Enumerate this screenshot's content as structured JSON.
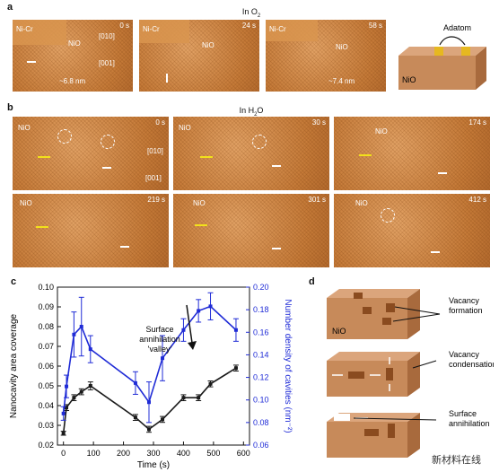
{
  "panel_a": {
    "label": "a",
    "condition": "In O",
    "condition_sub": "2",
    "frames": [
      {
        "time": "0 s",
        "tags": [
          "Ni-Cr",
          "NiO"
        ],
        "dirs": [
          "[010]",
          "[001]"
        ],
        "measure": "~6.8 nm"
      },
      {
        "time": "24 s",
        "tags": [
          "Ni-Cr",
          "NiO"
        ]
      },
      {
        "time": "58 s",
        "tags": [
          "Ni-Cr",
          "NiO"
        ],
        "measure": "~7.4 nm"
      }
    ],
    "schematic": {
      "adatom": "Adatom",
      "nio": "NiO"
    }
  },
  "panel_b": {
    "label": "b",
    "condition": "In H",
    "condition_sub": "2",
    "condition_tail": "O",
    "frames": [
      {
        "time": "0 s",
        "tag": "NiO",
        "dirs": [
          "[010]",
          "[001]"
        ]
      },
      {
        "time": "30 s",
        "tag": "NiO"
      },
      {
        "time": "174 s",
        "tag": "NiO"
      },
      {
        "time": "219 s",
        "tag": "NiO"
      },
      {
        "time": "301 s",
        "tag": "NiO"
      },
      {
        "time": "412 s",
        "tag": "NiO"
      }
    ]
  },
  "panel_c": {
    "label": "c"
  },
  "panel_d": {
    "label": "d",
    "nio": "NiO",
    "labels": [
      "Vacancy\nformation",
      "Vacancy\ncondensation",
      "Surface\nannihilation"
    ]
  },
  "watermark": "新材料在线",
  "colors": {
    "black_series": "#1a1a1a",
    "blue_series": "#1f2bd6",
    "block": "#c78a5a",
    "block_top": "#dba57c",
    "block_side": "#a86a3d"
  },
  "chart_data": {
    "type": "line",
    "xlabel": "Time (s)",
    "ylabel_left": "Nanocavity area coverage",
    "ylabel_right": "Number density of cavities (nm⁻²)",
    "xlim": [
      -20,
      620
    ],
    "x_ticks": [
      0,
      100,
      200,
      300,
      400,
      500,
      600
    ],
    "ylim_left": [
      0.02,
      0.1
    ],
    "y_ticks_left": [
      "0.02",
      "0.03",
      "0.04",
      "0.05",
      "0.06",
      "0.07",
      "0.08",
      "0.09",
      "0.10"
    ],
    "ylim_right": [
      0.06,
      0.2
    ],
    "y_ticks_right": [
      "0.06",
      "0.08",
      "0.10",
      "0.12",
      "0.14",
      "0.16",
      "0.18",
      "0.20"
    ],
    "annotation": "Surface\nannihilation\n'valley'",
    "series": [
      {
        "axis": "left",
        "color": "#1a1a1a",
        "x": [
          0,
          10,
          35,
          60,
          90,
          240,
          285,
          330,
          400,
          450,
          490,
          575
        ],
        "y": [
          0.026,
          0.039,
          0.044,
          0.047,
          0.05,
          0.034,
          0.028,
          0.033,
          0.044,
          0.044,
          0.051,
          0.059
        ],
        "err": [
          0.001,
          0.0015,
          0.0015,
          0.0015,
          0.002,
          0.0015,
          0.0015,
          0.0015,
          0.0015,
          0.0015,
          0.0015,
          0.0015
        ]
      },
      {
        "axis": "right",
        "color": "#1f2bd6",
        "x": [
          0,
          10,
          35,
          60,
          90,
          240,
          285,
          330,
          400,
          450,
          490,
          575
        ],
        "y": [
          0.088,
          0.112,
          0.158,
          0.165,
          0.145,
          0.115,
          0.098,
          0.137,
          0.162,
          0.179,
          0.183,
          0.162
        ],
        "err": [
          0.006,
          0.01,
          0.02,
          0.026,
          0.012,
          0.01,
          0.018,
          0.02,
          0.01,
          0.01,
          0.012,
          0.01
        ]
      }
    ]
  }
}
